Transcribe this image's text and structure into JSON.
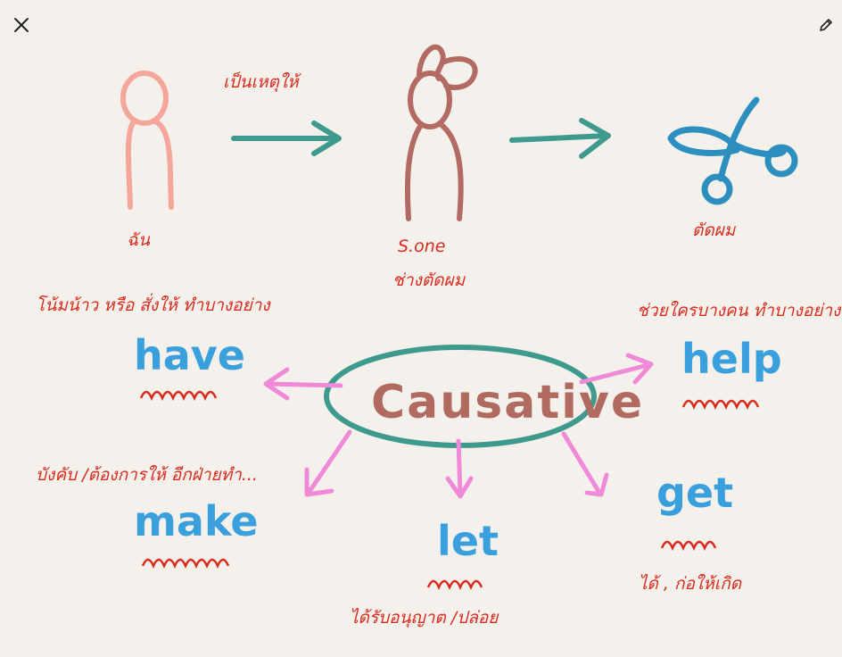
{
  "toolbar": {
    "close_icon": "close-icon",
    "edit_icon": "pencil-icon"
  },
  "diagram": {
    "top": {
      "person1_label": "ฉัน",
      "arrow1_label": "เป็นเหตุให้",
      "person2_label": "S.one",
      "person2_sublabel": "ช่างตัดผม",
      "scissors_label": "ตัดผม"
    },
    "center": "Causative",
    "verbs": {
      "have": {
        "word": "have",
        "meaning": "โน้มน้าว หรือ สั่งให้ ทำบางอย่าง"
      },
      "make": {
        "word": "make",
        "meaning": "บังคับ /ต้องการให้ อีกฝ่ายทำ..."
      },
      "let": {
        "word": "let",
        "meaning": "ได้รับอนุญาต /ปล่อย"
      },
      "get": {
        "word": "get",
        "meaning": "ได้ , ก่อให้เกิด"
      },
      "help": {
        "word": "help",
        "meaning": "ช่วยใครบางคน ทำบางอย่าง"
      }
    }
  },
  "colors": {
    "background": "#f4f1ec",
    "thai_text": "#d92b1e",
    "verb_text": "#3a9fdd",
    "center_text": "#b06a5f",
    "ellipse": "#3f9a8e",
    "pink_arrows": "#f08ad8",
    "person1": "#f5a69a",
    "person2": "#b36a62",
    "teal_arrow": "#3f9a8e",
    "scissors": "#2c8fc0"
  }
}
